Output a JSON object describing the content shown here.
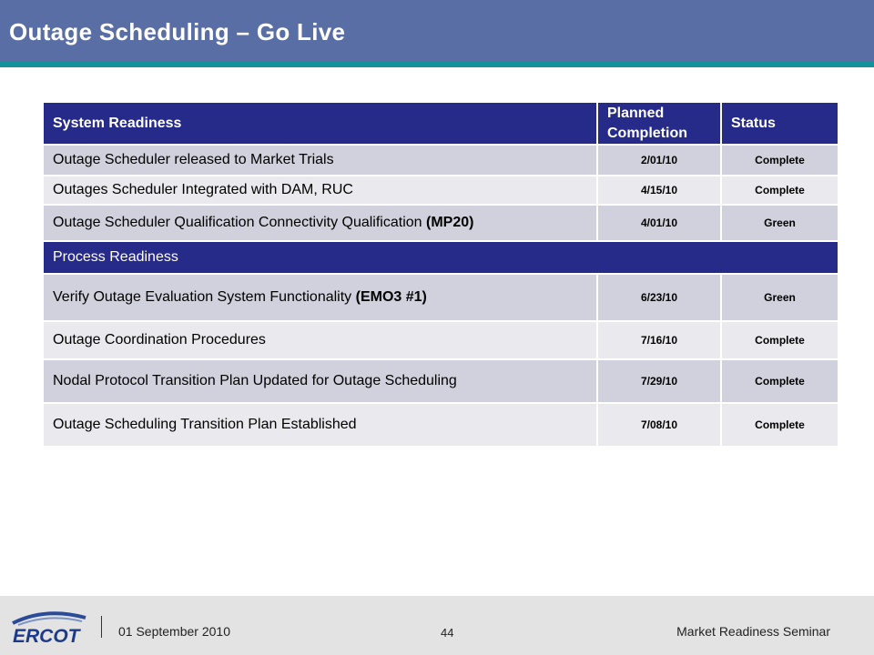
{
  "slide": {
    "title": "Outage Scheduling – Go Live"
  },
  "table": {
    "headers": {
      "col1": "System Readiness",
      "col2": "Planned Completion",
      "col3": "Status"
    },
    "system_rows": [
      {
        "task": "Outage Scheduler released to Market Trials",
        "task_bold": "",
        "date": "2/01/10",
        "status": "Complete"
      },
      {
        "task": "Outages Scheduler Integrated with DAM, RUC",
        "task_bold": "",
        "date": "4/15/10",
        "status": "Complete"
      },
      {
        "task": "Outage Scheduler Qualification Connectivity Qualification ",
        "task_bold": "(MP20)",
        "date": "4/01/10",
        "status": "Green"
      }
    ],
    "section2_label": "Process Readiness",
    "process_rows": [
      {
        "task": "Verify Outage Evaluation System Functionality ",
        "task_bold": "(EMO3 #1)",
        "date": "6/23/10",
        "status": "Green"
      },
      {
        "task": "Outage Coordination Procedures",
        "task_bold": "",
        "date": "7/16/10",
        "status": "Complete"
      },
      {
        "task": "Nodal Protocol Transition Plan Updated for Outage Scheduling",
        "task_bold": "",
        "date": "7/29/10",
        "status": "Complete"
      },
      {
        "task": "Outage Scheduling Transition Plan Established",
        "task_bold": "",
        "date": "7/08/10",
        "status": "Complete"
      }
    ]
  },
  "footer": {
    "logo_text": "ERCOT",
    "date": "01 September 2010",
    "page_number": "44",
    "event": "Market Readiness Seminar"
  },
  "colors": {
    "title_bar": "#5a6ea6",
    "stripe": "#13929a",
    "table_header": "#262b8a",
    "row_odd": "#d0d1dc",
    "row_even": "#e9e9ee"
  }
}
